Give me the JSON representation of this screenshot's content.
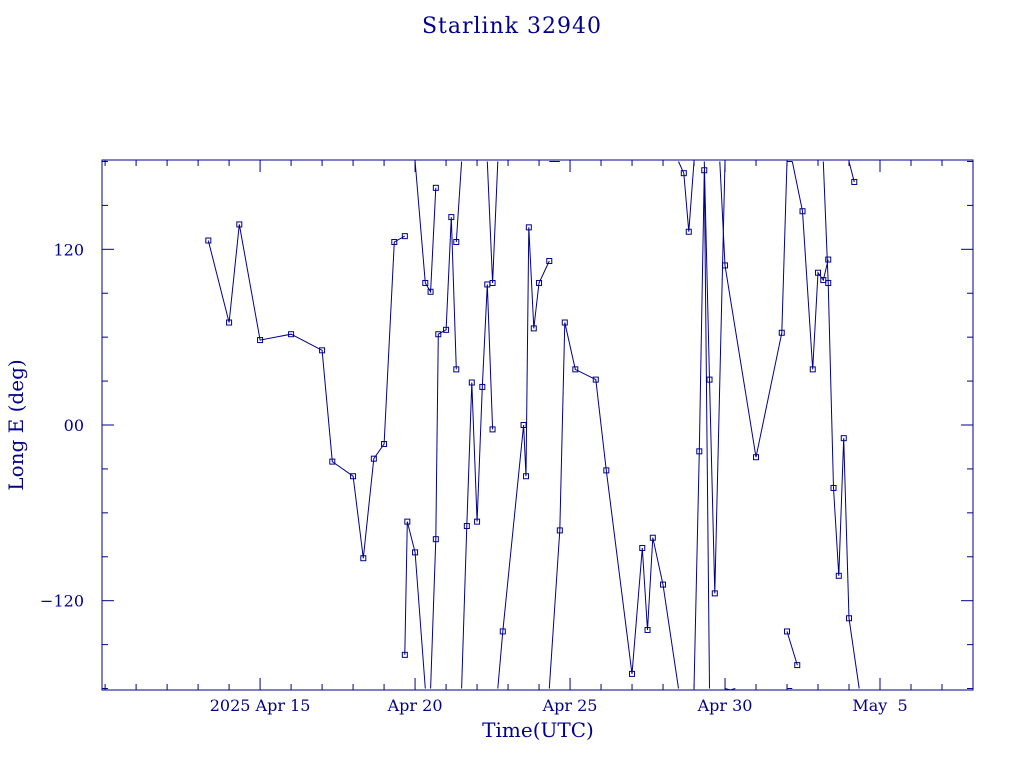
{
  "chart_data": {
    "type": "line",
    "title": "Starlink 32940",
    "xlabel": "Time(UTC)",
    "ylabel": "Long E (deg)",
    "x_unit": "days in April 2025",
    "xlim": [
      9.9,
      38.0
    ],
    "ylim": [
      -181,
      181
    ],
    "x_ticks": [
      {
        "value": 15,
        "label": "2025 Apr 15"
      },
      {
        "value": 20,
        "label": "Apr 20"
      },
      {
        "value": 25,
        "label": "Apr 25"
      },
      {
        "value": 30,
        "label": "Apr 30"
      },
      {
        "value": 35,
        "label": "May  5"
      }
    ],
    "y_ticks": [
      {
        "value": 120,
        "label": "120"
      },
      {
        "value": 0,
        "label": "00"
      },
      {
        "value": -120,
        "label": "−120"
      }
    ],
    "grid": false,
    "color": "#00008b",
    "series": [
      {
        "x": [
          13.33,
          14.0,
          14.33,
          15.0,
          16.0,
          17.0,
          17.33,
          18.0,
          18.33,
          18.67,
          19.0,
          19.33,
          19.67
        ],
        "y": [
          126,
          70,
          137,
          58,
          62,
          51,
          -25,
          -35,
          -91,
          -23,
          -13,
          125,
          129
        ]
      },
      {
        "x": [
          19.67,
          19.75,
          20.0,
          20.33
        ],
        "y": [
          -157,
          -66,
          -87,
          -180
        ]
      },
      {
        "x": [
          20.0,
          20.33,
          20.5,
          20.67
        ],
        "y": [
          180,
          97,
          91,
          162
        ]
      },
      {
        "x": [
          20.5,
          20.67,
          20.75,
          21.0,
          21.17,
          21.33
        ],
        "y": [
          -180,
          -78,
          62,
          65,
          142,
          38
        ]
      },
      {
        "x": [
          21.33,
          21.5
        ],
        "y": [
          125,
          180
        ]
      },
      {
        "x": [
          21.5,
          21.67,
          21.83,
          22.0,
          22.17,
          22.33,
          22.5
        ],
        "y": [
          -180,
          -69,
          29,
          -66,
          26,
          96,
          -3
        ]
      },
      {
        "x": [
          22.33,
          22.5,
          22.67
        ],
        "y": [
          180,
          97,
          180
        ]
      },
      {
        "x": [
          22.67,
          22.83,
          23.5,
          23.58,
          23.67,
          23.83,
          24.0,
          24.33
        ],
        "y": [
          -180,
          -141,
          0,
          -35,
          135,
          66,
          97,
          112
        ]
      },
      {
        "x": [
          24.33,
          24.67
        ],
        "y": [
          180,
          180
        ]
      },
      {
        "x": [
          24.33,
          24.67,
          24.83,
          25.17,
          25.83,
          26.17,
          27.0,
          27.33,
          27.5,
          27.67,
          28.0,
          28.5
        ],
        "y": [
          -180,
          -72,
          70,
          38,
          31,
          -31,
          -170,
          -84,
          -140,
          -77,
          -109,
          -180
        ]
      },
      {
        "x": [
          28.5,
          28.67,
          28.83,
          29.0
        ],
        "y": [
          180,
          172,
          132,
          180
        ]
      },
      {
        "x": [
          29.0,
          29.17,
          29.33,
          29.5
        ],
        "y": [
          -180,
          -18,
          174,
          -180
        ]
      },
      {
        "x": [
          29.33,
          29.5,
          29.67,
          30.0
        ],
        "y": [
          180,
          31,
          -115,
          180
        ]
      },
      {
        "x": [
          30.0,
          30.17,
          30.33
        ],
        "y": [
          -180,
          -181,
          -180
        ]
      },
      {
        "x": [
          29.83,
          30.0,
          31.0,
          31.83,
          32.0,
          32.17
        ],
        "y": [
          180,
          109,
          -22,
          63,
          180,
          180
        ]
      },
      {
        "x": [
          32.17,
          32.5,
          32.83,
          33.0,
          33.17,
          33.33
        ],
        "y": [
          180,
          146,
          38,
          104,
          99,
          113
        ]
      },
      {
        "x": [
          33.17,
          33.33,
          33.5,
          33.67,
          33.83,
          34.0,
          34.33
        ],
        "y": [
          180,
          97,
          -43,
          -103,
          -9,
          -132,
          -180
        ]
      },
      {
        "x": [
          34.0,
          34.17
        ],
        "y": [
          180,
          166
        ]
      },
      {
        "x": [
          32.0,
          32.33
        ],
        "y": [
          -141,
          -164
        ]
      },
      {
        "x": [
          32.0,
          32.17
        ],
        "y": [
          -180,
          -180
        ]
      }
    ]
  }
}
